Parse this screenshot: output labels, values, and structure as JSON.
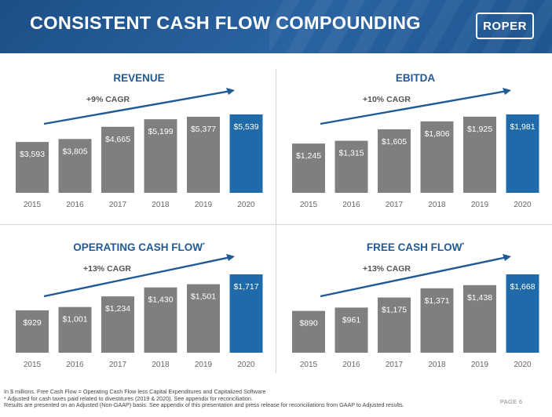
{
  "header": {
    "title": "CONSISTENT CASH FLOW COMPOUNDING",
    "logo_text": "ROPER"
  },
  "colors": {
    "bar_gray": "#7f7f7f",
    "bar_blue": "#1f6aa8",
    "arrow": "#1f5a96",
    "title_blue": "#1f5a96"
  },
  "chart_data": [
    {
      "type": "bar",
      "title": "REVENUE",
      "annotation": "+9% CAGR",
      "categories": [
        "2015",
        "2016",
        "2017",
        "2018",
        "2019",
        "2020"
      ],
      "values": [
        3593,
        3805,
        4665,
        5199,
        5377,
        5539
      ],
      "value_labels": [
        "$3,593",
        "$3,805",
        "$4,665",
        "$5,199",
        "$5,377",
        "$5,539"
      ],
      "highlight_index": 5
    },
    {
      "type": "bar",
      "title": "EBITDA",
      "annotation": "+10% CAGR",
      "categories": [
        "2015",
        "2016",
        "2017",
        "2018",
        "2019",
        "2020"
      ],
      "values": [
        1245,
        1315,
        1605,
        1806,
        1925,
        1981
      ],
      "value_labels": [
        "$1,245",
        "$1,315",
        "$1,605",
        "$1,806",
        "$1,925",
        "$1,981"
      ],
      "highlight_index": 5
    },
    {
      "type": "bar",
      "title": "OPERATING CASH FLOW",
      "title_marker": "*",
      "annotation": "+13% CAGR",
      "categories": [
        "2015",
        "2016",
        "2017",
        "2018",
        "2019",
        "2020"
      ],
      "values": [
        929,
        1001,
        1234,
        1430,
        1501,
        1717
      ],
      "value_labels": [
        "$929",
        "$1,001",
        "$1,234",
        "$1,430",
        "$1,501",
        "$1,717"
      ],
      "highlight_index": 5
    },
    {
      "type": "bar",
      "title": "FREE CASH FLOW",
      "title_marker": "*",
      "annotation": "+13% CAGR",
      "categories": [
        "2015",
        "2016",
        "2017",
        "2018",
        "2019",
        "2020"
      ],
      "values": [
        890,
        961,
        1175,
        1371,
        1438,
        1668
      ],
      "value_labels": [
        "$890",
        "$961",
        "$1,175",
        "$1,371",
        "$1,438",
        "$1,668"
      ],
      "highlight_index": 5
    }
  ],
  "footer": {
    "line1": "In $ millions. Free Cash Flow = Operating Cash Flow less Capital Expenditures and Capitalized Software",
    "line2": "* Adjusted for cash taxes paid related to divestitures (2019 & 2020). See appendix for reconciliation.",
    "line3": "Results are presented on an Adjusted (Non-GAAP) basis. See appendix of this presentation and press release for reconciliations from GAAP to Adjusted results.",
    "page": "PAGE 6"
  }
}
